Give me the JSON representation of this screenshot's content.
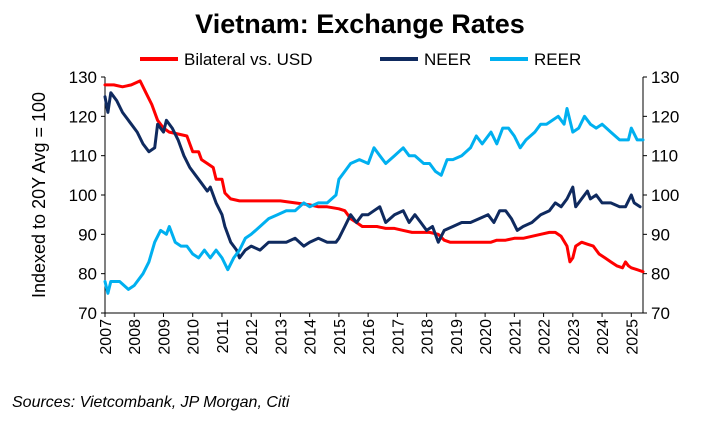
{
  "chart_data": {
    "type": "line",
    "title": "Vietnam: Exchange Rates",
    "ylabel": "Indexed to 20Y Avg = 100",
    "ylim": [
      70,
      130
    ],
    "yticks": [
      70,
      80,
      90,
      100,
      110,
      120,
      130
    ],
    "xlim": [
      2007,
      2025.4
    ],
    "xticks": [
      "2007",
      "2008",
      "2009",
      "2010",
      "2011",
      "2012",
      "2013",
      "2014",
      "2015",
      "2016",
      "2017",
      "2018",
      "2019",
      "2020",
      "2021",
      "2022",
      "2023",
      "2024",
      "2025"
    ],
    "legend_position": "top",
    "source": "Sources: Vietcombank, JP Morgan, Citi",
    "series": [
      {
        "name": "Bilateral vs. USD",
        "color": "#ff0000",
        "points": [
          [
            2007.0,
            128
          ],
          [
            2007.3,
            128
          ],
          [
            2007.6,
            127.5
          ],
          [
            2007.9,
            128
          ],
          [
            2008.2,
            129
          ],
          [
            2008.4,
            126
          ],
          [
            2008.6,
            123
          ],
          [
            2008.8,
            119
          ],
          [
            2009.0,
            117
          ],
          [
            2009.2,
            116
          ],
          [
            2009.5,
            115.5
          ],
          [
            2009.8,
            115
          ],
          [
            2009.9,
            113
          ],
          [
            2010.0,
            111
          ],
          [
            2010.2,
            111
          ],
          [
            2010.3,
            109
          ],
          [
            2010.5,
            108
          ],
          [
            2010.7,
            107
          ],
          [
            2010.8,
            104
          ],
          [
            2011.0,
            104
          ],
          [
            2011.1,
            100.5
          ],
          [
            2011.3,
            99
          ],
          [
            2011.6,
            98.5
          ],
          [
            2012.0,
            98.5
          ],
          [
            2012.5,
            98.5
          ],
          [
            2013.0,
            98.5
          ],
          [
            2013.5,
            98
          ],
          [
            2014.0,
            97.5
          ],
          [
            2014.3,
            97
          ],
          [
            2014.6,
            97
          ],
          [
            2015.0,
            96.5
          ],
          [
            2015.2,
            96
          ],
          [
            2015.4,
            94
          ],
          [
            2015.6,
            93
          ],
          [
            2015.8,
            92
          ],
          [
            2016.0,
            92
          ],
          [
            2016.3,
            92
          ],
          [
            2016.6,
            91.5
          ],
          [
            2016.9,
            91.5
          ],
          [
            2017.2,
            91
          ],
          [
            2017.5,
            90.5
          ],
          [
            2017.8,
            90.5
          ],
          [
            2018.1,
            90.5
          ],
          [
            2018.4,
            90
          ],
          [
            2018.6,
            88.5
          ],
          [
            2018.8,
            88
          ],
          [
            2019.0,
            88
          ],
          [
            2019.3,
            88
          ],
          [
            2019.6,
            88
          ],
          [
            2019.9,
            88
          ],
          [
            2020.2,
            88
          ],
          [
            2020.4,
            88.5
          ],
          [
            2020.7,
            88.5
          ],
          [
            2021.0,
            89
          ],
          [
            2021.3,
            89
          ],
          [
            2021.6,
            89.5
          ],
          [
            2021.9,
            90
          ],
          [
            2022.2,
            90.5
          ],
          [
            2022.4,
            90.5
          ],
          [
            2022.6,
            89.5
          ],
          [
            2022.8,
            87
          ],
          [
            2022.9,
            83
          ],
          [
            2023.0,
            84
          ],
          [
            2023.1,
            87
          ],
          [
            2023.3,
            88
          ],
          [
            2023.5,
            87.5
          ],
          [
            2023.7,
            87
          ],
          [
            2023.9,
            85
          ],
          [
            2024.1,
            84
          ],
          [
            2024.3,
            83
          ],
          [
            2024.5,
            82
          ],
          [
            2024.7,
            81.5
          ],
          [
            2024.8,
            83
          ],
          [
            2024.9,
            82
          ],
          [
            2025.0,
            81.5
          ],
          [
            2025.2,
            81
          ],
          [
            2025.4,
            80.5
          ]
        ]
      },
      {
        "name": "NEER",
        "color": "#0f2a5f",
        "points": [
          [
            2007.0,
            125
          ],
          [
            2007.1,
            121
          ],
          [
            2007.2,
            126
          ],
          [
            2007.4,
            124
          ],
          [
            2007.6,
            121
          ],
          [
            2007.9,
            118
          ],
          [
            2008.1,
            116
          ],
          [
            2008.3,
            113
          ],
          [
            2008.5,
            111
          ],
          [
            2008.7,
            112
          ],
          [
            2008.8,
            118
          ],
          [
            2009.0,
            116
          ],
          [
            2009.1,
            119
          ],
          [
            2009.3,
            117
          ],
          [
            2009.5,
            114
          ],
          [
            2009.7,
            110
          ],
          [
            2009.9,
            107
          ],
          [
            2010.1,
            105
          ],
          [
            2010.3,
            103
          ],
          [
            2010.5,
            101
          ],
          [
            2010.6,
            102
          ],
          [
            2010.8,
            98
          ],
          [
            2011.0,
            95
          ],
          [
            2011.1,
            92
          ],
          [
            2011.3,
            88
          ],
          [
            2011.5,
            86
          ],
          [
            2011.6,
            84
          ],
          [
            2011.8,
            86
          ],
          [
            2012.0,
            87
          ],
          [
            2012.3,
            86
          ],
          [
            2012.6,
            88
          ],
          [
            2012.9,
            88
          ],
          [
            2013.2,
            88
          ],
          [
            2013.5,
            89
          ],
          [
            2013.8,
            87
          ],
          [
            2014.0,
            88
          ],
          [
            2014.3,
            89
          ],
          [
            2014.6,
            88
          ],
          [
            2014.9,
            88
          ],
          [
            2015.0,
            89
          ],
          [
            2015.2,
            92
          ],
          [
            2015.4,
            95
          ],
          [
            2015.6,
            93
          ],
          [
            2015.8,
            95
          ],
          [
            2016.0,
            95
          ],
          [
            2016.2,
            96
          ],
          [
            2016.4,
            97
          ],
          [
            2016.6,
            93
          ],
          [
            2016.9,
            95
          ],
          [
            2017.2,
            96
          ],
          [
            2017.4,
            93
          ],
          [
            2017.6,
            95
          ],
          [
            2017.8,
            93
          ],
          [
            2018.0,
            91
          ],
          [
            2018.2,
            92
          ],
          [
            2018.4,
            88
          ],
          [
            2018.6,
            91
          ],
          [
            2018.9,
            92
          ],
          [
            2019.2,
            93
          ],
          [
            2019.5,
            93
          ],
          [
            2019.8,
            94
          ],
          [
            2020.1,
            95
          ],
          [
            2020.3,
            93
          ],
          [
            2020.5,
            96
          ],
          [
            2020.7,
            96
          ],
          [
            2020.9,
            94
          ],
          [
            2021.1,
            91
          ],
          [
            2021.3,
            92
          ],
          [
            2021.6,
            93
          ],
          [
            2021.9,
            95
          ],
          [
            2022.2,
            96
          ],
          [
            2022.4,
            98
          ],
          [
            2022.6,
            97
          ],
          [
            2022.8,
            99
          ],
          [
            2023.0,
            102
          ],
          [
            2023.1,
            97
          ],
          [
            2023.3,
            99
          ],
          [
            2023.5,
            101
          ],
          [
            2023.6,
            99
          ],
          [
            2023.8,
            100
          ],
          [
            2024.0,
            98
          ],
          [
            2024.3,
            98
          ],
          [
            2024.6,
            97
          ],
          [
            2024.8,
            97
          ],
          [
            2025.0,
            100
          ],
          [
            2025.1,
            98
          ],
          [
            2025.3,
            97
          ]
        ]
      },
      {
        "name": "REER",
        "color": "#00b0f0",
        "points": [
          [
            2007.0,
            78
          ],
          [
            2007.1,
            75
          ],
          [
            2007.2,
            78
          ],
          [
            2007.5,
            78
          ],
          [
            2007.8,
            76
          ],
          [
            2008.0,
            77
          ],
          [
            2008.3,
            80
          ],
          [
            2008.5,
            83
          ],
          [
            2008.7,
            88
          ],
          [
            2008.9,
            91
          ],
          [
            2009.1,
            90
          ],
          [
            2009.2,
            92
          ],
          [
            2009.4,
            88
          ],
          [
            2009.6,
            87
          ],
          [
            2009.8,
            87
          ],
          [
            2010.0,
            85
          ],
          [
            2010.2,
            84
          ],
          [
            2010.4,
            86
          ],
          [
            2010.6,
            84
          ],
          [
            2010.8,
            86
          ],
          [
            2011.0,
            84
          ],
          [
            2011.2,
            81
          ],
          [
            2011.4,
            84
          ],
          [
            2011.6,
            86
          ],
          [
            2011.8,
            89
          ],
          [
            2012.0,
            90
          ],
          [
            2012.3,
            92
          ],
          [
            2012.6,
            94
          ],
          [
            2012.9,
            95
          ],
          [
            2013.2,
            96
          ],
          [
            2013.5,
            96
          ],
          [
            2013.8,
            98
          ],
          [
            2014.0,
            97
          ],
          [
            2014.3,
            98
          ],
          [
            2014.6,
            98
          ],
          [
            2014.9,
            100
          ],
          [
            2015.0,
            104
          ],
          [
            2015.2,
            106
          ],
          [
            2015.4,
            108
          ],
          [
            2015.7,
            109
          ],
          [
            2016.0,
            108
          ],
          [
            2016.2,
            112
          ],
          [
            2016.4,
            110
          ],
          [
            2016.6,
            108
          ],
          [
            2016.9,
            110
          ],
          [
            2017.2,
            112
          ],
          [
            2017.4,
            110
          ],
          [
            2017.6,
            110
          ],
          [
            2017.9,
            108
          ],
          [
            2018.1,
            108
          ],
          [
            2018.3,
            106
          ],
          [
            2018.5,
            105
          ],
          [
            2018.7,
            109
          ],
          [
            2018.9,
            109
          ],
          [
            2019.2,
            110
          ],
          [
            2019.5,
            112
          ],
          [
            2019.7,
            115
          ],
          [
            2019.9,
            113
          ],
          [
            2020.2,
            116
          ],
          [
            2020.4,
            113
          ],
          [
            2020.6,
            117
          ],
          [
            2020.8,
            117
          ],
          [
            2021.0,
            115
          ],
          [
            2021.2,
            112
          ],
          [
            2021.4,
            114
          ],
          [
            2021.7,
            116
          ],
          [
            2021.9,
            118
          ],
          [
            2022.1,
            118
          ],
          [
            2022.3,
            119
          ],
          [
            2022.5,
            120
          ],
          [
            2022.7,
            118
          ],
          [
            2022.8,
            122
          ],
          [
            2023.0,
            116
          ],
          [
            2023.2,
            117
          ],
          [
            2023.4,
            120
          ],
          [
            2023.6,
            118
          ],
          [
            2023.8,
            117
          ],
          [
            2024.0,
            118
          ],
          [
            2024.3,
            116
          ],
          [
            2024.6,
            114
          ],
          [
            2024.9,
            114
          ],
          [
            2025.0,
            117
          ],
          [
            2025.2,
            114
          ],
          [
            2025.4,
            114
          ]
        ]
      }
    ]
  }
}
